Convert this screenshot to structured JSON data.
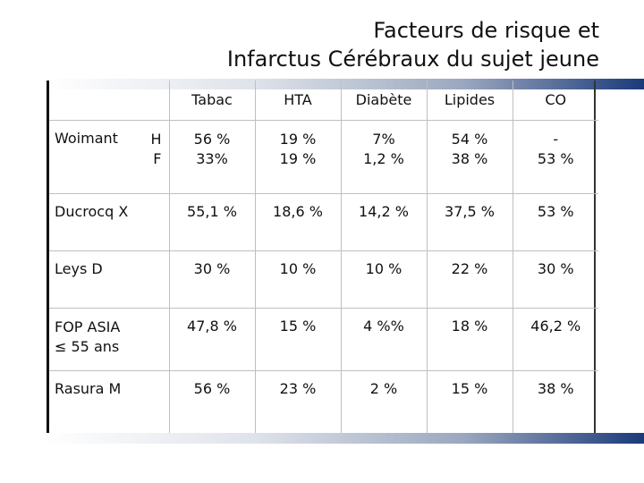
{
  "title": {
    "line1": "Facteurs de risque et",
    "line2": "Infarctus Cérébraux du sujet jeune"
  },
  "table": {
    "columns": [
      "Tabac",
      "HTA",
      "Diabète",
      "Lipides",
      "CO"
    ],
    "woimant": {
      "label": "Woimant",
      "sex1": "H",
      "sex2": "F",
      "h": [
        "56 %",
        "19 %",
        "7%",
        "54 %",
        "-"
      ],
      "f": [
        "33%",
        "19 %",
        "1,2 %",
        "38 %",
        "53 %"
      ]
    },
    "rows": [
      {
        "label": "Ducrocq X",
        "values": [
          "55,1 %",
          "18,6 %",
          "14,2 %",
          "37,5 %",
          "53 %"
        ]
      },
      {
        "label": "Leys D",
        "values": [
          "30 %",
          "10 %",
          "10 %",
          "22 %",
          "30 %"
        ]
      },
      {
        "label_line1": "FOP ASIA",
        "label_line2": "≤ 55 ans",
        "values": [
          "47,8 %",
          "15 %",
          "4 %%",
          "18 %",
          "46,2 %"
        ]
      },
      {
        "label": "Rasura M",
        "values": [
          "56 %",
          "23 %",
          "2 %",
          "15 %",
          "38 %"
        ]
      }
    ]
  }
}
